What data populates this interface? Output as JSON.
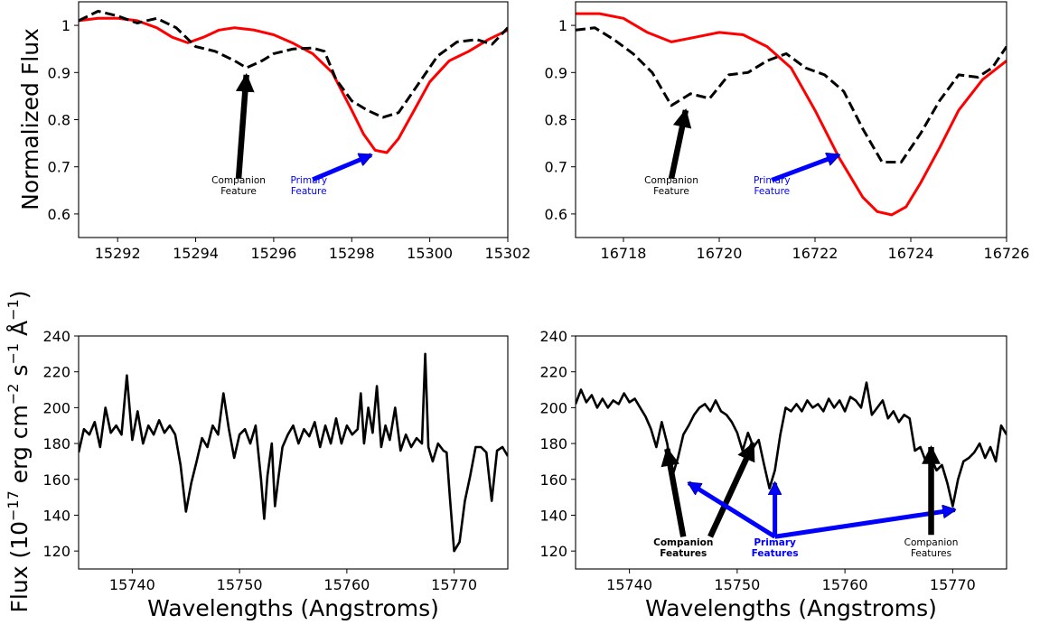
{
  "ylabel_top": "Normalized Flux",
  "ylabel_bottom": "Flux (10",
  "ylabel_bottom_exp1": "−17",
  "ylabel_bottom_mid1": " erg cm",
  "ylabel_bottom_exp2": "−2",
  "ylabel_bottom_mid2": " s",
  "ylabel_bottom_exp3": "−1",
  "ylabel_bottom_mid3": " Å",
  "ylabel_bottom_exp4": "−1",
  "ylabel_bottom_end": ")",
  "colors": {
    "model": "#ff0000",
    "observed": "#000000",
    "primary_arrow": "#0000ff",
    "companion_arrow": "#000000"
  },
  "chart_data": [
    {
      "type": "line",
      "panel": "top-left",
      "xlim": [
        15291,
        15302
      ],
      "ylim": [
        0.55,
        1.05
      ],
      "xticks": [
        15292,
        15294,
        15296,
        15298,
        15300,
        15302
      ],
      "yticks": [
        0.6,
        0.7,
        0.8,
        0.9,
        1.0
      ],
      "xlabel": "",
      "series": [
        {
          "style": "solid-red",
          "x": [
            15291,
            15291.5,
            15292,
            15292.5,
            15293,
            15293.4,
            15293.8,
            15294.2,
            15294.6,
            15295,
            15295.5,
            15296,
            15296.5,
            15297,
            15297.5,
            15298,
            15298.3,
            15298.6,
            15298.9,
            15299.2,
            15299.6,
            15300,
            15300.5,
            15301,
            15301.5,
            15302
          ],
          "y": [
            1.01,
            1.015,
            1.015,
            1.01,
            0.995,
            0.975,
            0.963,
            0.975,
            0.99,
            0.995,
            0.99,
            0.98,
            0.962,
            0.94,
            0.9,
            0.82,
            0.77,
            0.735,
            0.73,
            0.76,
            0.82,
            0.88,
            0.925,
            0.945,
            0.97,
            0.99
          ]
        },
        {
          "style": "dashed-black",
          "x": [
            15291,
            15291.5,
            15292,
            15292.5,
            15293,
            15293.5,
            15294,
            15294.5,
            15295,
            15295.3,
            15295.7,
            15296,
            15296.5,
            15297,
            15297.3,
            15297.6,
            15298,
            15298.4,
            15298.8,
            15299.2,
            15299.7,
            15300.2,
            15300.7,
            15301.2,
            15301.6,
            15302
          ],
          "y": [
            1.01,
            1.03,
            1.02,
            1.005,
            1.015,
            0.995,
            0.955,
            0.945,
            0.925,
            0.91,
            0.925,
            0.94,
            0.95,
            0.952,
            0.945,
            0.885,
            0.84,
            0.82,
            0.805,
            0.815,
            0.875,
            0.935,
            0.965,
            0.97,
            0.96,
            0.995
          ]
        }
      ],
      "annotations": [
        {
          "text_line1": "Companion",
          "text_line2": "Feature",
          "kind": "companion"
        },
        {
          "text_line1": "Primary",
          "text_line2": "Feature",
          "kind": "primary"
        }
      ]
    },
    {
      "type": "line",
      "panel": "top-right",
      "xlim": [
        16717,
        16726
      ],
      "ylim": [
        0.55,
        1.05
      ],
      "xticks": [
        16718,
        16720,
        16722,
        16724,
        16726
      ],
      "yticks": [
        0.6,
        0.7,
        0.8,
        0.9,
        1.0
      ],
      "xlabel": "",
      "series": [
        {
          "style": "solid-red",
          "x": [
            16717,
            16717.5,
            16718,
            16718.5,
            16719,
            16719.5,
            16720,
            16720.5,
            16721,
            16721.5,
            16722,
            16722.5,
            16723,
            16723.3,
            16723.6,
            16723.9,
            16724.2,
            16724.6,
            16725,
            16725.5,
            16726
          ],
          "y": [
            1.025,
            1.025,
            1.015,
            0.985,
            0.965,
            0.975,
            0.985,
            0.98,
            0.955,
            0.91,
            0.82,
            0.72,
            0.635,
            0.605,
            0.598,
            0.615,
            0.665,
            0.74,
            0.82,
            0.885,
            0.925
          ]
        },
        {
          "style": "dashed-black",
          "x": [
            16717,
            16717.4,
            16717.8,
            16718.2,
            16718.6,
            16719,
            16719.4,
            16719.8,
            16720.2,
            16720.6,
            16721,
            16721.4,
            16721.8,
            16722.2,
            16722.6,
            16723,
            16723.4,
            16723.8,
            16724.2,
            16724.6,
            16725,
            16725.4,
            16725.7,
            16726
          ],
          "y": [
            0.99,
            0.995,
            0.97,
            0.94,
            0.9,
            0.83,
            0.855,
            0.845,
            0.895,
            0.9,
            0.925,
            0.94,
            0.91,
            0.895,
            0.86,
            0.78,
            0.71,
            0.71,
            0.77,
            0.84,
            0.895,
            0.89,
            0.91,
            0.955
          ]
        }
      ],
      "annotations": [
        {
          "text_line1": "Companion",
          "text_line2": "Feature",
          "kind": "companion"
        },
        {
          "text_line1": "Primary",
          "text_line2": "Feature",
          "kind": "primary"
        }
      ]
    },
    {
      "type": "line",
      "panel": "bottom-left",
      "xlim": [
        15735,
        15775
      ],
      "ylim": [
        110,
        240
      ],
      "xticks": [
        15740,
        15750,
        15760,
        15770
      ],
      "yticks": [
        120,
        140,
        160,
        180,
        200,
        220,
        240
      ],
      "xlabel": "Wavelengths (Angstroms)",
      "series": [
        {
          "style": "solid-black",
          "x": [
            15735,
            15735.5,
            15736,
            15736.5,
            15737,
            15737.5,
            15738,
            15738.5,
            15739,
            15739.5,
            15740,
            15740.5,
            15741,
            15741.5,
            15742,
            15742.5,
            15743,
            15743.5,
            15744,
            15744.5,
            15745,
            15745.5,
            15746,
            15746.5,
            15747,
            15747.5,
            15748,
            15748.5,
            15749,
            15749.5,
            15750,
            15750.5,
            15751,
            15751.5,
            15752,
            15752.3,
            15752.6,
            15753,
            15753.3,
            15753.6,
            15754,
            15754.5,
            15755,
            15755.5,
            15756,
            15756.5,
            15757,
            15757.5,
            15758,
            15758.5,
            15759,
            15759.5,
            15760,
            15760.5,
            15761,
            15761.3,
            15761.6,
            15762,
            15762.4,
            15762.8,
            15763.2,
            15763.6,
            15764,
            15764.5,
            15765,
            15765.5,
            15766,
            15766.5,
            15767,
            15767.3,
            15767.6,
            15768,
            15768.5,
            15769,
            15769.3,
            15769.6,
            15770,
            15770.5,
            15771,
            15771.5,
            15772,
            15772.5,
            15773,
            15773.5,
            15774,
            15774.5,
            15775
          ],
          "y": [
            175,
            188,
            185,
            192,
            178,
            200,
            186,
            190,
            185,
            218,
            182,
            198,
            180,
            190,
            185,
            193,
            186,
            190,
            185,
            168,
            142,
            158,
            170,
            183,
            178,
            190,
            185,
            208,
            188,
            172,
            185,
            188,
            180,
            190,
            160,
            138,
            162,
            180,
            145,
            160,
            178,
            185,
            190,
            180,
            188,
            184,
            192,
            178,
            190,
            180,
            194,
            180,
            190,
            185,
            188,
            208,
            180,
            200,
            186,
            212,
            178,
            190,
            182,
            200,
            176,
            185,
            178,
            183,
            180,
            230,
            178,
            170,
            180,
            176,
            175,
            150,
            120,
            125,
            148,
            162,
            178,
            178,
            175,
            148,
            176,
            178,
            173
          ]
        }
      ],
      "annotations": []
    },
    {
      "type": "line",
      "panel": "bottom-right",
      "xlim": [
        15735,
        15775
      ],
      "ylim": [
        110,
        240
      ],
      "xticks": [
        15740,
        15750,
        15760,
        15770
      ],
      "yticks": [
        120,
        140,
        160,
        180,
        200,
        220,
        240
      ],
      "xlabel": "Wavelengths (Angstroms)",
      "series": [
        {
          "style": "solid-black",
          "x": [
            15735,
            15735.5,
            15736,
            15736.5,
            15737,
            15737.5,
            15738,
            15738.5,
            15739,
            15739.5,
            15740,
            15740.5,
            15741,
            15741.5,
            15742,
            15742.5,
            15743,
            15743.5,
            15744,
            15744.5,
            15745,
            15745.5,
            15746,
            15746.5,
            15747,
            15747.5,
            15748,
            15748.5,
            15749,
            15749.5,
            15750,
            15750.5,
            15751,
            15751.5,
            15752,
            15752.5,
            15753,
            15753.5,
            15754,
            15754.5,
            15755,
            15755.5,
            15756,
            15756.5,
            15757,
            15757.5,
            15758,
            15758.5,
            15759,
            15759.5,
            15760,
            15760.5,
            15761,
            15761.5,
            15762,
            15762.5,
            15763,
            15763.5,
            15764,
            15764.5,
            15765,
            15765.5,
            15766,
            15766.5,
            15767,
            15767.5,
            15768,
            15768.5,
            15769,
            15769.5,
            15770,
            15770.5,
            15771,
            15771.5,
            15772,
            15772.5,
            15773,
            15773.5,
            15774,
            15774.5,
            15775
          ],
          "y": [
            202,
            210,
            203,
            207,
            200,
            205,
            200,
            204,
            202,
            208,
            203,
            205,
            200,
            195,
            188,
            178,
            192,
            180,
            162,
            172,
            185,
            190,
            196,
            200,
            202,
            198,
            204,
            198,
            196,
            192,
            186,
            176,
            186,
            178,
            182,
            168,
            155,
            165,
            185,
            200,
            198,
            202,
            198,
            204,
            200,
            202,
            198,
            205,
            200,
            204,
            198,
            206,
            204,
            200,
            214,
            196,
            200,
            204,
            194,
            198,
            192,
            196,
            194,
            176,
            178,
            170,
            172,
            165,
            168,
            158,
            145,
            160,
            170,
            172,
            175,
            180,
            172,
            178,
            170,
            190,
            185
          ]
        }
      ],
      "annotations": [
        {
          "text_line1": "Companion",
          "text_line2": "Features",
          "kind": "companion",
          "bold": true
        },
        {
          "text_line1": "Primary",
          "text_line2": "Features",
          "kind": "primary",
          "bold": true
        },
        {
          "text_line1": "Companion",
          "text_line2": "Features",
          "kind": "companion",
          "bold": false
        }
      ]
    }
  ]
}
